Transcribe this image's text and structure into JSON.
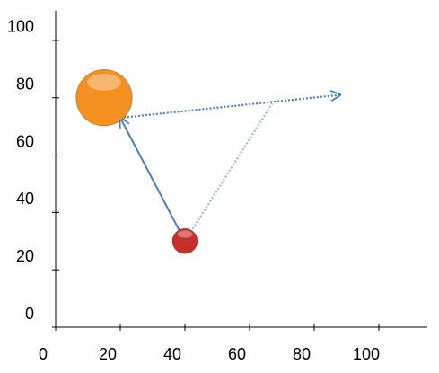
{
  "chart_data": {
    "type": "bubble",
    "series": [
      {
        "color": "#f39020",
        "x": [
          15
        ],
        "values": [
          80
        ],
        "sizes": [
          5
        ]
      },
      {
        "color": "#c4302b",
        "x": [
          40
        ],
        "values": [
          30
        ],
        "sizes": [
          1
        ]
      }
    ],
    "arrows": [
      {
        "from": [
          40,
          30
        ],
        "to": [
          20,
          73
        ],
        "style": "solid",
        "head": true,
        "color": "#4a7ebb"
      },
      {
        "from": [
          20,
          73
        ],
        "to": [
          88,
          81
        ],
        "style": "dotted",
        "head": true,
        "color": "#4a7ebb"
      },
      {
        "from": [
          40,
          30
        ],
        "to": [
          67,
          78
        ],
        "style": "dotted",
        "head": false,
        "color": "#9db8dc"
      }
    ],
    "xlim": [
      0,
      115
    ],
    "ylim": [
      0,
      110
    ],
    "xticks": [
      0,
      20,
      40,
      60,
      80,
      100
    ],
    "yticks": [
      0,
      20,
      40,
      60,
      80,
      100
    ],
    "grid": false
  }
}
